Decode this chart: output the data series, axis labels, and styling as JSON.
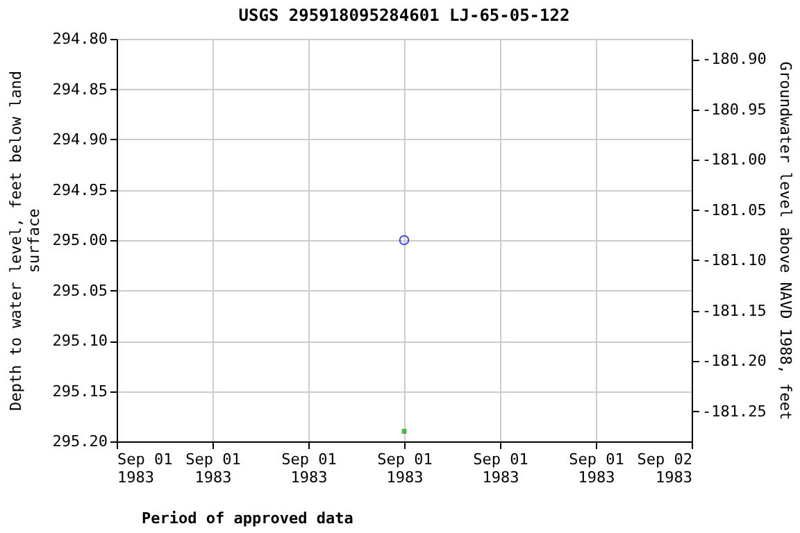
{
  "chart_data": {
    "type": "scatter",
    "title": "USGS 295918095284601 LJ-65-05-122",
    "ylabel": "Depth to water level, feet below land\nsurface",
    "y2label": "Groundwater level above NAVD 1988, feet",
    "x": [
      "1983-09-01T12:00"
    ],
    "series": [
      {
        "color": "#0000ff",
        "values": [
          295.0
        ],
        "marker": "circle"
      },
      {
        "name": "Period of approved data",
        "type": "scatter",
        "color": "#00a000",
        "values": [
          295.19
        ],
        "marker": "square"
      }
    ],
    "xlim": [
      "1983-09-01T00:00",
      "1983-09-02T00:00"
    ],
    "xticks": [
      {
        "value": "1983-09-01T00:00",
        "label": "Sep 01\n1983"
      },
      {
        "value": "1983-09-01T04:00",
        "label": "Sep 01\n1983"
      },
      {
        "value": "1983-09-01T08:00",
        "label": "Sep 01\n1983"
      },
      {
        "value": "1983-09-01T12:00",
        "label": "Sep 01\n1983"
      },
      {
        "value": "1983-09-01T16:00",
        "label": "Sep 01\n1983"
      },
      {
        "value": "1983-09-01T20:00",
        "label": "Sep 01\n1983"
      },
      {
        "value": "1983-09-02T00:00",
        "label": "Sep 02\n1983"
      }
    ],
    "ylim": [
      295.2,
      294.8
    ],
    "yticks": [
      {
        "value": 294.8,
        "label": "294.80"
      },
      {
        "value": 294.85,
        "label": "294.85"
      },
      {
        "value": 294.9,
        "label": "294.90"
      },
      {
        "value": 294.95,
        "label": "294.95"
      },
      {
        "value": 295.0,
        "label": "295.00"
      },
      {
        "value": 295.05,
        "label": "295.05"
      },
      {
        "value": 295.1,
        "label": "295.10"
      },
      {
        "value": 295.15,
        "label": "295.15"
      },
      {
        "value": 295.2,
        "label": "295.20"
      }
    ],
    "y2lim": [
      -181.28,
      -180.88
    ],
    "y2ticks": [
      {
        "value": -180.9,
        "label": "-180.90"
      },
      {
        "value": -180.95,
        "label": "-180.95"
      },
      {
        "value": -181.0,
        "label": "-181.00"
      },
      {
        "value": -181.05,
        "label": "-181.05"
      },
      {
        "value": -181.1,
        "label": "-181.10"
      },
      {
        "value": -181.15,
        "label": "-181.15"
      },
      {
        "value": -181.2,
        "label": "-181.20"
      },
      {
        "value": -181.25,
        "label": "-181.25"
      }
    ],
    "grid": true,
    "legend": "bottom"
  }
}
